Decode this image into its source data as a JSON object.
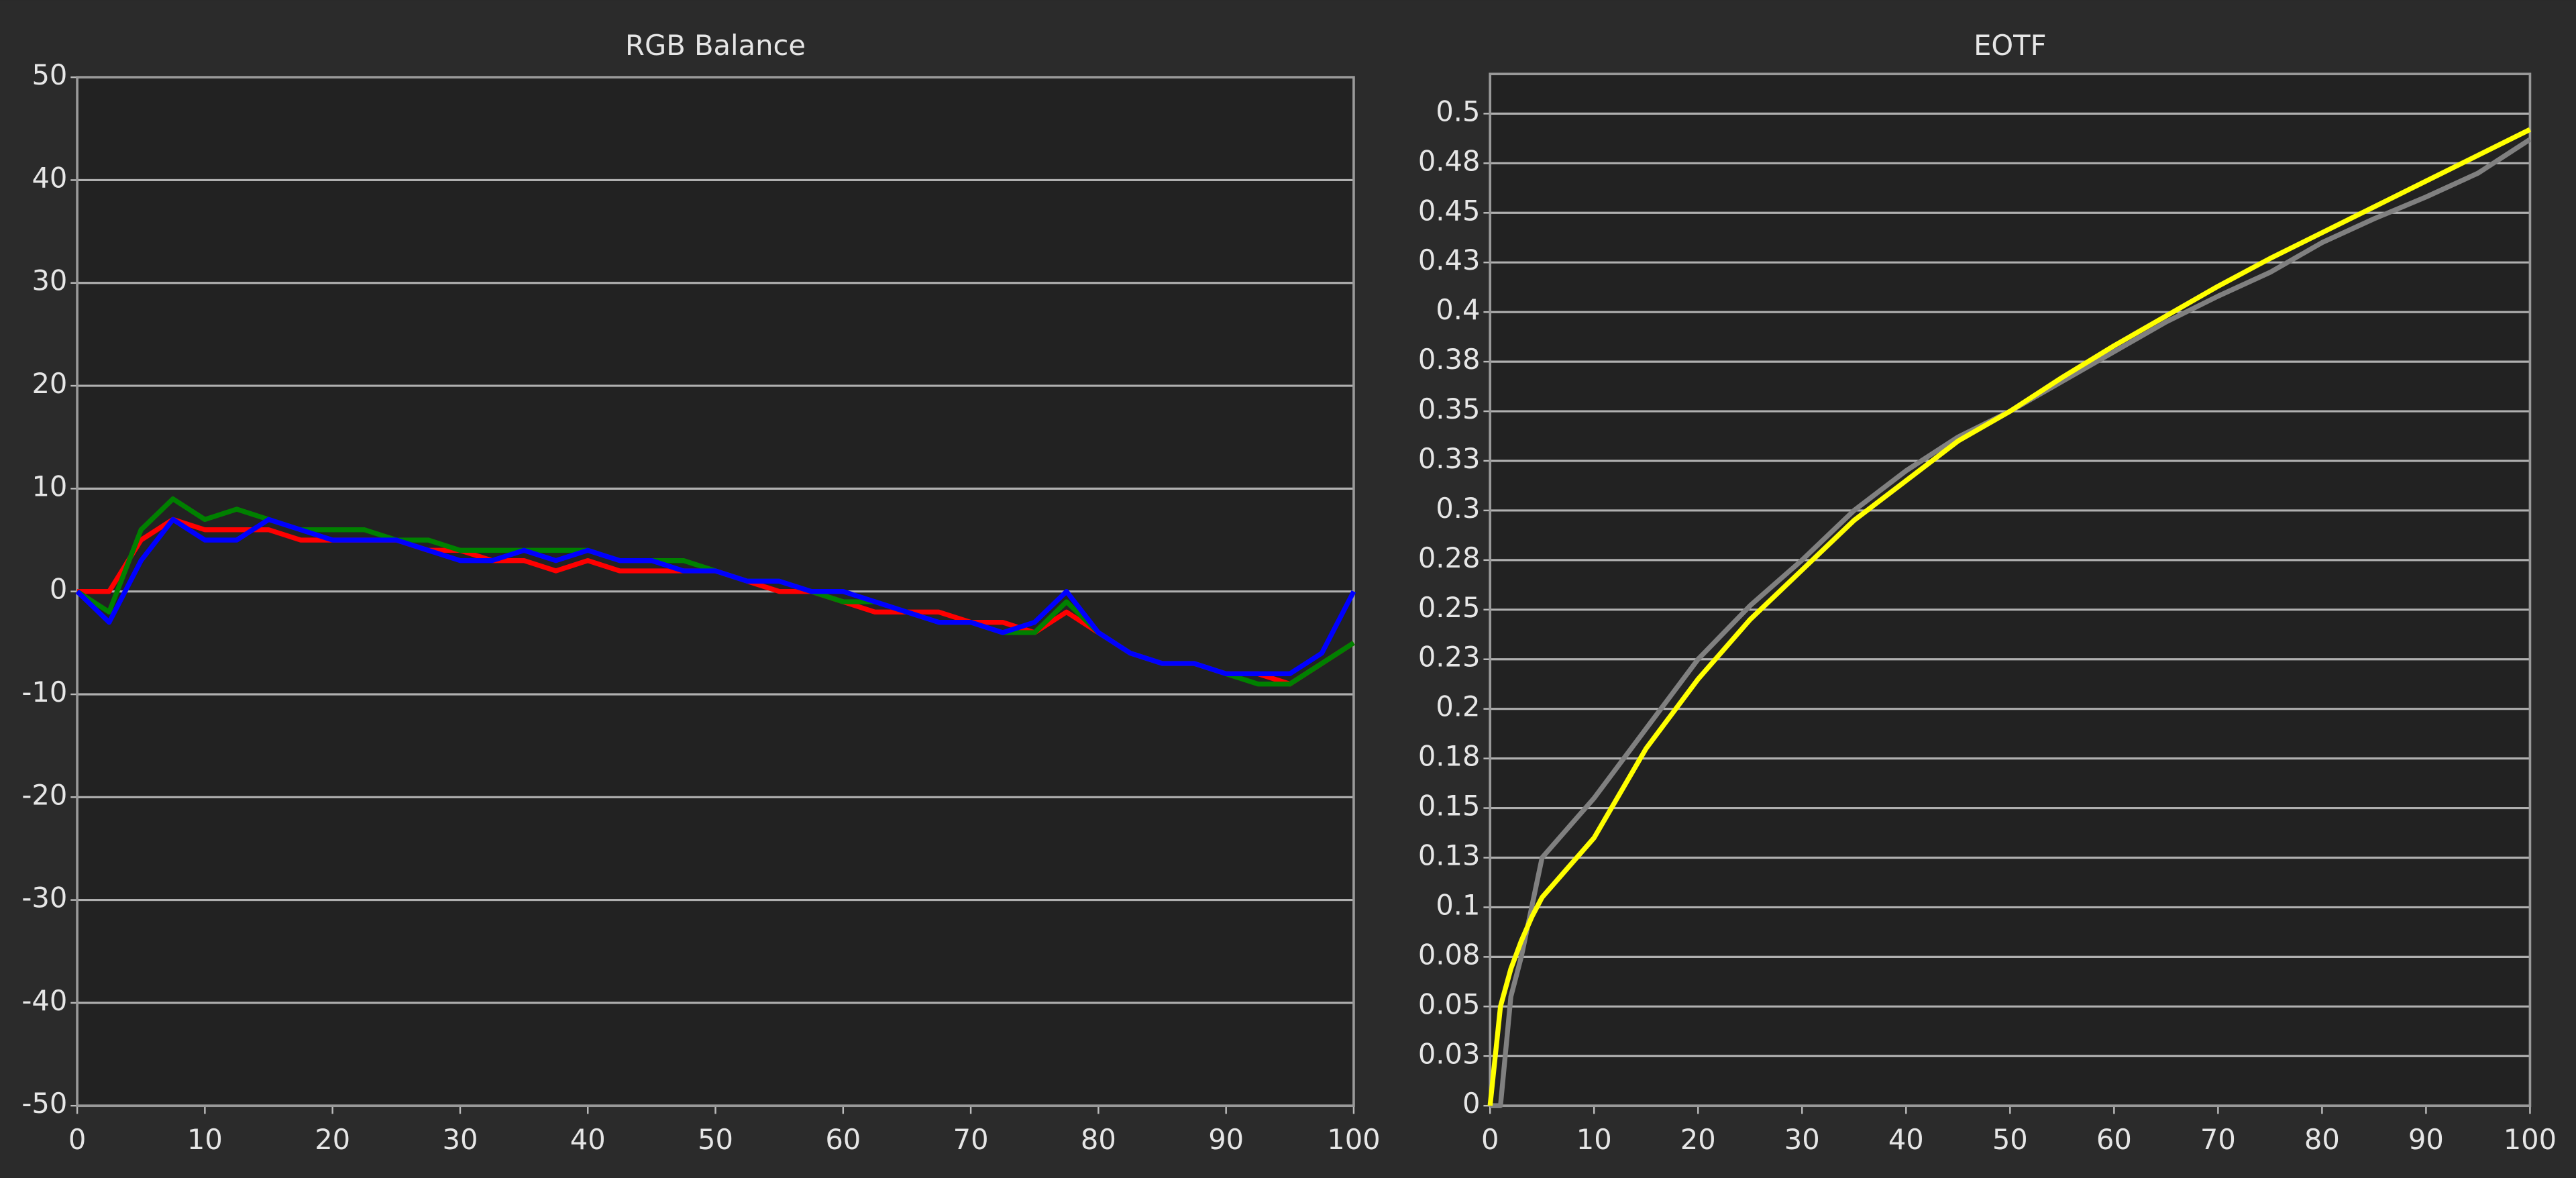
{
  "chart_data": [
    {
      "type": "line",
      "title": "RGB Balance",
      "x": [
        0,
        2.5,
        5,
        7.5,
        10,
        12.5,
        15,
        17.5,
        20,
        22.5,
        25,
        27.5,
        30,
        32.5,
        35,
        37.5,
        40,
        42.5,
        45,
        47.5,
        50,
        52.5,
        55,
        57.5,
        60,
        62.5,
        65,
        67.5,
        70,
        72.5,
        75,
        77.5,
        80,
        82.5,
        85,
        87.5,
        90,
        92.5,
        95,
        97.5,
        100
      ],
      "xlim": [
        0,
        100
      ],
      "xticks": [
        0,
        10,
        20,
        30,
        40,
        50,
        60,
        70,
        80,
        90,
        100
      ],
      "ylim": [
        -50,
        50
      ],
      "yticks": [
        -50,
        -40,
        -30,
        -20,
        -10,
        0,
        10,
        20,
        30,
        40,
        50
      ],
      "grid": true,
      "series": [
        {
          "color": "#ff0000",
          "values": [
            0,
            0,
            5,
            7,
            6,
            6,
            6,
            5,
            5,
            5,
            5,
            4,
            4,
            3,
            3,
            2,
            3,
            2,
            2,
            2,
            2,
            1,
            0,
            0,
            -1,
            -2,
            -2,
            -2,
            -3,
            -3,
            -4,
            -2,
            -4,
            -6,
            -7,
            -7,
            -8,
            -8,
            -9,
            -7,
            -5
          ]
        },
        {
          "color": "#008000",
          "values": [
            0,
            -2,
            6,
            9,
            7,
            8,
            7,
            6,
            6,
            6,
            5,
            5,
            4,
            4,
            4,
            4,
            4,
            3,
            3,
            3,
            2,
            1,
            1,
            0,
            -1,
            -1,
            -2,
            -3,
            -3,
            -4,
            -4,
            -1,
            -4,
            -6,
            -7,
            -7,
            -8,
            -9,
            -9,
            -7,
            -5
          ]
        },
        {
          "color": "#0000ff",
          "values": [
            0,
            -3,
            3,
            7,
            5,
            5,
            7,
            6,
            5,
            5,
            5,
            4,
            3,
            3,
            4,
            3,
            4,
            3,
            3,
            2,
            2,
            1,
            1,
            0,
            0,
            -1,
            -2,
            -3,
            -3,
            -4,
            -3,
            0,
            -4,
            -6,
            -7,
            -7,
            -8,
            -8,
            -8,
            -6,
            0
          ]
        }
      ]
    },
    {
      "type": "line",
      "title": "EOTF",
      "x": [
        0,
        1,
        2,
        3,
        4,
        5,
        10,
        15,
        20,
        25,
        30,
        35,
        40,
        45,
        50,
        55,
        60,
        65,
        70,
        75,
        80,
        85,
        90,
        95,
        100
      ],
      "xlim": [
        0,
        100
      ],
      "xticks": [
        0,
        10,
        20,
        30,
        40,
        50,
        60,
        70,
        80,
        90,
        100
      ],
      "ylim": [
        0,
        0.52
      ],
      "yticks": [
        0,
        {
          "value": 0.025,
          "label": "0.03"
        },
        0.05,
        {
          "value": 0.075,
          "label": "0.08"
        },
        0.1,
        {
          "value": 0.125,
          "label": "0.13"
        },
        0.15,
        {
          "value": 0.175,
          "label": "0.18"
        },
        0.2,
        {
          "value": 0.225,
          "label": "0.23"
        },
        0.25,
        {
          "value": 0.275,
          "label": "0.28"
        },
        0.3,
        {
          "value": 0.325,
          "label": "0.33"
        },
        0.35,
        {
          "value": 0.375,
          "label": "0.38"
        },
        0.4,
        {
          "value": 0.425,
          "label": "0.43"
        },
        0.45,
        {
          "value": 0.475,
          "label": "0.48"
        },
        0.5
      ],
      "grid": true,
      "series": [
        {
          "color": "#808080",
          "values": [
            0,
            0,
            0.055,
            0.075,
            0.1,
            0.125,
            0.155,
            0.19,
            0.225,
            0.252,
            0.275,
            0.3,
            0.32,
            0.337,
            0.35,
            0.365,
            0.38,
            0.395,
            0.408,
            0.42,
            0.435,
            0.447,
            0.458,
            0.47,
            0.487
          ]
        },
        {
          "color": "#ffff00",
          "values": [
            0,
            0.05,
            0.069,
            0.083,
            0.095,
            0.105,
            0.135,
            0.18,
            0.215,
            0.245,
            0.27,
            0.295,
            0.315,
            0.335,
            0.35,
            0.367,
            0.383,
            0.398,
            0.413,
            0.427,
            0.44,
            0.453,
            0.466,
            0.479,
            0.492
          ]
        }
      ]
    }
  ]
}
